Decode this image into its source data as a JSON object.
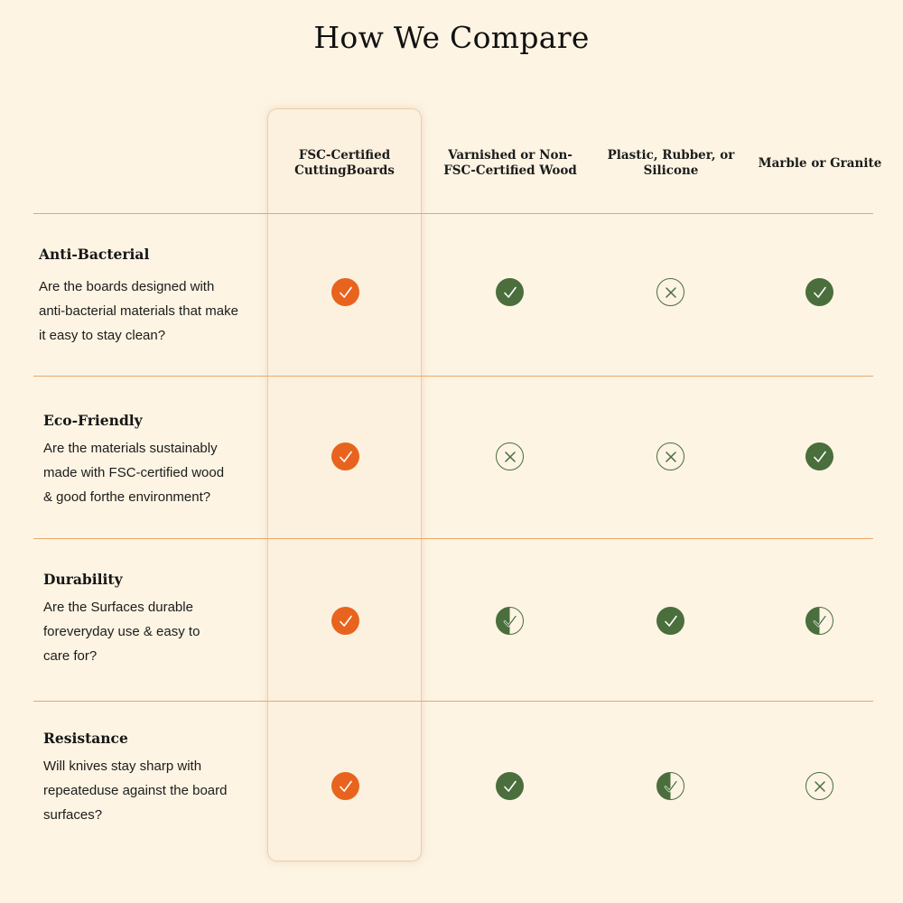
{
  "title": "How We Compare",
  "columns": [
    {
      "label_line1": "FSC-Certified",
      "label_line2": "CuttingBoards",
      "highlighted": true
    },
    {
      "label_line1": "Varnished or Non-",
      "label_line2": "FSC-Certified Wood"
    },
    {
      "label_line1": "Plastic, Rubber, or",
      "label_line2": "Silicone"
    },
    {
      "label_line1": "Marble or Granite",
      "label_line2": ""
    }
  ],
  "rows": [
    {
      "label": "Anti-Bacterial",
      "desc": [
        "Are the boards designed with",
        "anti-bacterial materials that make",
        "it easy to stay clean?"
      ],
      "marks": [
        "check",
        "check",
        "cross",
        "check"
      ]
    },
    {
      "label": "Eco-Friendly",
      "desc": [
        "Are the materials sustainably",
        "made with FSC-certified wood",
        "& good forthe environment?"
      ],
      "marks": [
        "check",
        "cross",
        "cross",
        "check"
      ]
    },
    {
      "label": "Durability",
      "desc": [
        "Are the Surfaces durable",
        "foreveryday use & easy to",
        "care for?"
      ],
      "marks": [
        "check",
        "partial",
        "check",
        "partial"
      ]
    },
    {
      "label": "Resistance",
      "desc": [
        "Will knives stay sharp with",
        "repeateduse against the board",
        "surfaces?"
      ],
      "marks": [
        "check",
        "check",
        "partial",
        "cross"
      ]
    }
  ],
  "colors": {
    "background": "#fdf4e3",
    "highlight_accent": "#e8641e",
    "positive": "#4a6e3c",
    "divider": "#e9a76a"
  },
  "icons": {
    "check": "checkmark-icon",
    "cross": "x-icon",
    "partial": "half-filled-checkmark-icon"
  }
}
